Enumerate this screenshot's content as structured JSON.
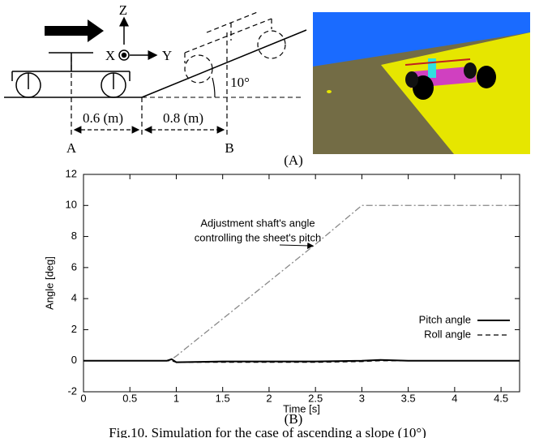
{
  "diagram": {
    "z_label": "Z",
    "x_label": "X",
    "y_label": "Y",
    "angle_label": "10°",
    "dist_1": "0.6 (m)",
    "dist_2": "0.8 (m)",
    "point_a": "A",
    "point_b": "B",
    "panel_label": "(A)"
  },
  "chart_data": {
    "type": "line",
    "panel_label": "(B)",
    "caption": "Fig.10. Simulation for the case of ascending a slope (10°)",
    "xlabel": "Time [s]",
    "ylabel": "Angle [deg]",
    "annotation": [
      "Adjustment shaft's angle",
      "controlling the sheet's pitch"
    ],
    "x": [
      0,
      0.5,
      0.9,
      0.95,
      1.0,
      1.5,
      2.0,
      2.5,
      3.0,
      3.2,
      3.5,
      4.0,
      4.5,
      4.7
    ],
    "series": [
      {
        "name": "Pitch angle",
        "color": "#000000",
        "style": "solid",
        "values": [
          0,
          0,
          0,
          0.1,
          -0.1,
          -0.05,
          -0.05,
          -0.05,
          0,
          0.05,
          0,
          0,
          0,
          0
        ]
      },
      {
        "name": "Roll angle",
        "color": "#000000",
        "style": "dashed",
        "values": [
          0,
          0,
          0,
          0,
          -0.1,
          -0.1,
          -0.1,
          -0.1,
          -0.05,
          0,
          0,
          0,
          0,
          0
        ]
      },
      {
        "color": "#888888",
        "style": "dashdot",
        "values": [
          0,
          0,
          0,
          0.1,
          0.3,
          2.7,
          5.1,
          7.5,
          10,
          10,
          10,
          10,
          10,
          10
        ]
      }
    ],
    "xlim": [
      0,
      4.7
    ],
    "ylim": [
      -2,
      12
    ],
    "xticks": [
      0,
      0.5,
      1,
      1.5,
      2,
      2.5,
      3,
      3.5,
      4,
      4.5
    ],
    "yticks": [
      -2,
      0,
      2,
      4,
      6,
      8,
      10,
      12
    ],
    "legend": "lower right"
  }
}
